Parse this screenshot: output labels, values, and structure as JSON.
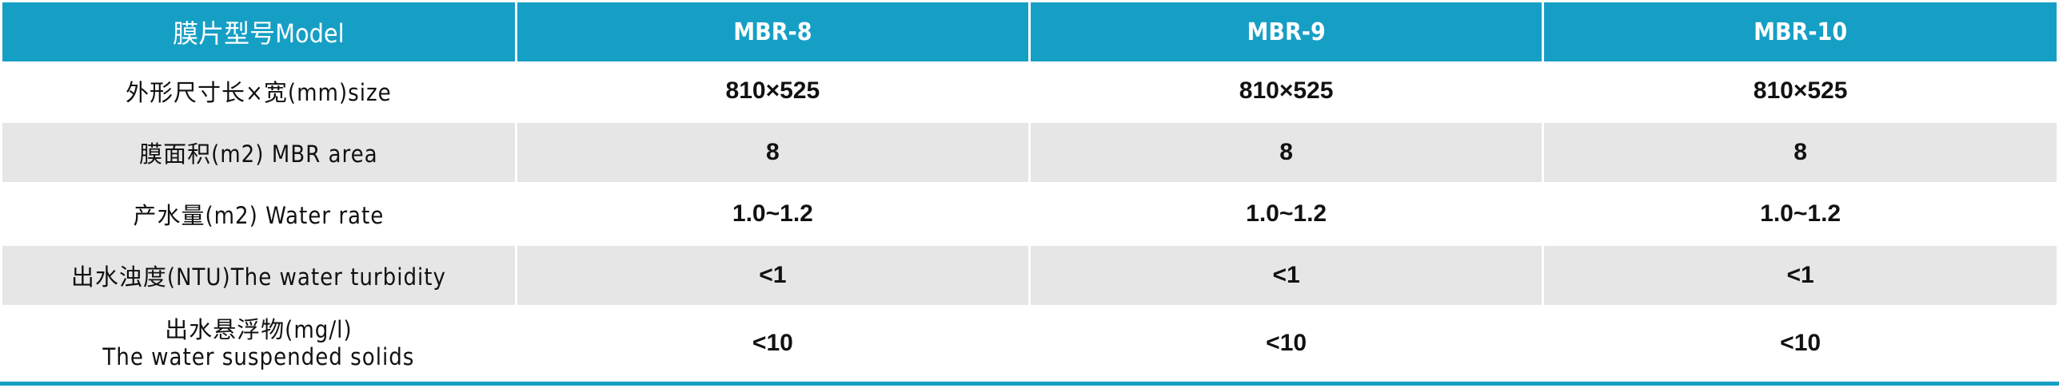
{
  "header": {
    "label": "膜片型号Model",
    "models": [
      "MBR-8",
      "MBR-9",
      "MBR-10"
    ]
  },
  "rows": [
    {
      "label": "外形尺寸长×宽(mm)size",
      "values": [
        "810×525",
        "810×525",
        "810×525"
      ]
    },
    {
      "label": "膜面积(m2) MBR area",
      "values": [
        "8",
        "8",
        "8"
      ]
    },
    {
      "label": "产水量(m2) Water rate",
      "values": [
        "1.0~1.2",
        "1.0~1.2",
        "1.0~1.2"
      ]
    },
    {
      "label": "出水浊度(NTU)The water turbidity",
      "values": [
        "<1",
        "<1",
        "<1"
      ]
    },
    {
      "label": "出水悬浮物(mg/l)",
      "label2": "The water suspended solids",
      "values": [
        "<10",
        "<10",
        "<10"
      ]
    }
  ],
  "colors": {
    "header": "#169fc5",
    "stripe": "#e6e6e6"
  }
}
